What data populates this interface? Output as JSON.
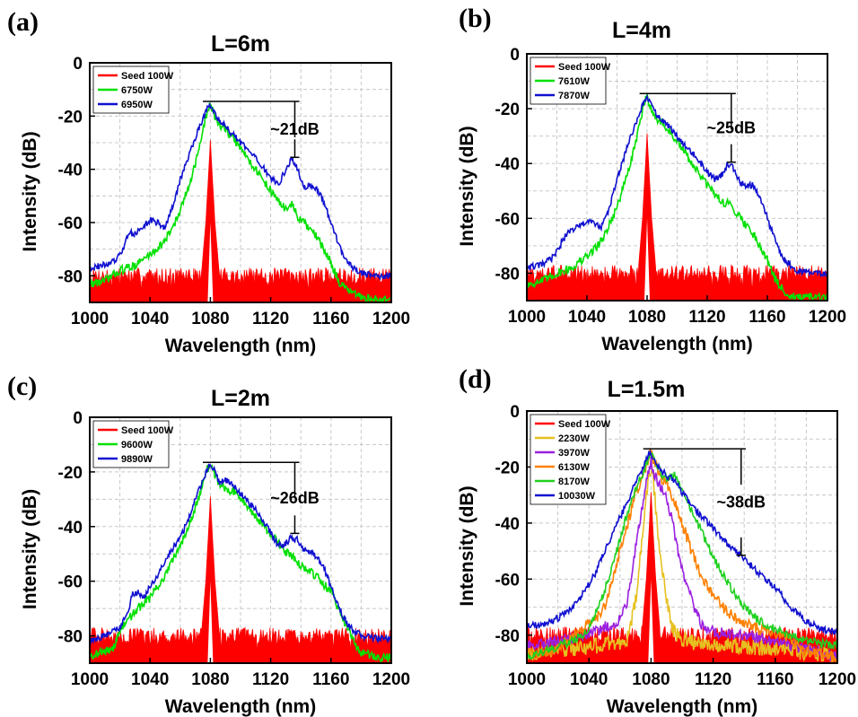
{
  "chart_data": [
    {
      "type": "line",
      "panel_label": "(a)",
      "title": "L=6m",
      "xlabel": "Wavelength (nm)",
      "ylabel": "Intensity (dB)",
      "xlim": [
        1000,
        1200
      ],
      "ylim": [
        -90,
        0
      ],
      "xticks": [
        1000,
        1040,
        1080,
        1120,
        1160,
        1200
      ],
      "yticks": [
        0,
        -20,
        -40,
        -60,
        -80
      ],
      "grid": true,
      "legend_position": "top-left",
      "annotation": {
        "text": "~21dB",
        "x": 1136,
        "y_top": -14.5,
        "y_bottom": -35.5
      },
      "series": [
        {
          "name": "Seed 100W",
          "color": "#ff0000",
          "style": "seed",
          "floor": -80,
          "noise": 3,
          "x": [
            1000,
            1074,
            1077,
            1079,
            1080,
            1081,
            1083,
            1086,
            1200
          ],
          "y": [
            -80,
            -80,
            -60,
            -40,
            -29,
            -40,
            -60,
            -80,
            -80
          ]
        },
        {
          "name": "6750W",
          "color": "#00e000",
          "noise": 1.6,
          "x": [
            1000,
            1010,
            1020,
            1030,
            1040,
            1050,
            1060,
            1070,
            1075,
            1078,
            1080,
            1083,
            1086,
            1090,
            1100,
            1110,
            1120,
            1125,
            1130,
            1134,
            1138,
            1145,
            1150,
            1155,
            1160,
            1165,
            1170,
            1175,
            1180,
            1190,
            1200
          ],
          "y": [
            -83,
            -82,
            -78,
            -76,
            -72,
            -67,
            -56,
            -38,
            -26,
            -18,
            -16,
            -20,
            -23,
            -25,
            -32,
            -40,
            -48,
            -52,
            -55,
            -53,
            -58,
            -62,
            -65,
            -70,
            -75,
            -82,
            -85,
            -87,
            -88,
            -89,
            -89
          ]
        },
        {
          "name": "6950W",
          "color": "#1010d0",
          "noise": 1.2,
          "x": [
            1000,
            1010,
            1018,
            1022,
            1026,
            1030,
            1035,
            1040,
            1045,
            1050,
            1055,
            1060,
            1065,
            1070,
            1075,
            1078,
            1080,
            1083,
            1086,
            1090,
            1100,
            1110,
            1120,
            1125,
            1130,
            1134,
            1138,
            1142,
            1146,
            1150,
            1155,
            1160,
            1165,
            1170,
            1175,
            1180,
            1190,
            1200
          ],
          "y": [
            -77,
            -76,
            -74,
            -70,
            -64,
            -64,
            -62,
            -59,
            -60,
            -62,
            -54,
            -44,
            -36,
            -28,
            -21,
            -17,
            -16,
            -19,
            -22,
            -24,
            -30,
            -36,
            -43,
            -46,
            -40,
            -36,
            -40,
            -47,
            -46,
            -47,
            -52,
            -60,
            -68,
            -74,
            -77,
            -79,
            -80,
            -80
          ]
        }
      ]
    },
    {
      "type": "line",
      "panel_label": "(b)",
      "title": "L=4m",
      "xlabel": "Wavelength (nm)",
      "ylabel": "Intensity (dB)",
      "xlim": [
        1000,
        1200
      ],
      "ylim": [
        -90,
        0
      ],
      "xticks": [
        1000,
        1040,
        1080,
        1120,
        1160,
        1200
      ],
      "yticks": [
        0,
        -20,
        -40,
        -60,
        -80
      ],
      "grid": true,
      "legend_position": "top-left",
      "annotation": {
        "text": "~25dB",
        "x": 1136,
        "y_top": -14.5,
        "y_bottom": -39.5
      },
      "series": [
        {
          "name": "Seed 100W",
          "color": "#ff0000",
          "style": "seed",
          "floor": -80,
          "noise": 3,
          "x": [
            1000,
            1074,
            1077,
            1079,
            1080,
            1081,
            1083,
            1086,
            1200
          ],
          "y": [
            -80,
            -80,
            -60,
            -40,
            -29,
            -40,
            -60,
            -80,
            -80
          ]
        },
        {
          "name": "7610W",
          "color": "#00e000",
          "noise": 1.6,
          "x": [
            1000,
            1010,
            1020,
            1030,
            1040,
            1050,
            1060,
            1070,
            1075,
            1078,
            1080,
            1083,
            1086,
            1090,
            1100,
            1110,
            1120,
            1125,
            1130,
            1135,
            1140,
            1145,
            1150,
            1155,
            1160,
            1165,
            1170,
            1175,
            1180,
            1190,
            1200
          ],
          "y": [
            -84,
            -83,
            -80,
            -78,
            -74,
            -68,
            -56,
            -38,
            -26,
            -18,
            -16,
            -20,
            -24,
            -25,
            -32,
            -40,
            -48,
            -51,
            -54,
            -55,
            -58,
            -62,
            -65,
            -70,
            -75,
            -82,
            -86,
            -88,
            -89,
            -89,
            -89
          ]
        },
        {
          "name": "7870W",
          "color": "#1010d0",
          "noise": 1.2,
          "x": [
            1000,
            1010,
            1018,
            1022,
            1026,
            1030,
            1035,
            1040,
            1045,
            1050,
            1055,
            1060,
            1065,
            1070,
            1075,
            1078,
            1080,
            1083,
            1086,
            1090,
            1100,
            1110,
            1120,
            1125,
            1130,
            1134,
            1138,
            1142,
            1146,
            1150,
            1155,
            1160,
            1165,
            1170,
            1175,
            1180,
            1190,
            1200
          ],
          "y": [
            -78,
            -77,
            -74,
            -70,
            -66,
            -64,
            -63,
            -61,
            -62,
            -63,
            -56,
            -46,
            -37,
            -29,
            -22,
            -17,
            -16,
            -19,
            -22,
            -24,
            -30,
            -36,
            -43,
            -46,
            -44,
            -40,
            -42,
            -47,
            -48,
            -48,
            -52,
            -60,
            -68,
            -74,
            -77,
            -79,
            -80,
            -80
          ]
        }
      ]
    },
    {
      "type": "line",
      "panel_label": "(c)",
      "title": "L=2m",
      "xlabel": "Wavelength (nm)",
      "ylabel": "Intensity (dB)",
      "xlim": [
        1000,
        1200
      ],
      "ylim": [
        -90,
        0
      ],
      "xticks": [
        1000,
        1040,
        1080,
        1120,
        1160,
        1200
      ],
      "yticks": [
        0,
        -20,
        -40,
        -60,
        -80
      ],
      "grid": true,
      "legend_position": "top-left",
      "annotation": {
        "text": "~26dB",
        "x": 1136,
        "y_top": -16.5,
        "y_bottom": -42.5
      },
      "series": [
        {
          "name": "Seed 100W",
          "color": "#ff0000",
          "style": "seed",
          "floor": -80,
          "noise": 3,
          "x": [
            1000,
            1074,
            1077,
            1079,
            1080,
            1081,
            1083,
            1086,
            1200
          ],
          "y": [
            -80,
            -80,
            -60,
            -40,
            -29,
            -40,
            -60,
            -80,
            -80
          ]
        },
        {
          "name": "9600W",
          "color": "#00e000",
          "noise": 1.6,
          "x": [
            1000,
            1010,
            1016,
            1020,
            1030,
            1040,
            1050,
            1060,
            1070,
            1075,
            1078,
            1080,
            1083,
            1086,
            1090,
            1095,
            1100,
            1110,
            1120,
            1130,
            1140,
            1150,
            1160,
            1165,
            1170,
            1175,
            1180,
            1190,
            1200
          ],
          "y": [
            -87,
            -86,
            -84,
            -78,
            -71,
            -66,
            -58,
            -47,
            -33,
            -24,
            -19,
            -18,
            -21,
            -24,
            -26,
            -27,
            -29,
            -36,
            -43,
            -49,
            -54,
            -58,
            -64,
            -70,
            -76,
            -82,
            -86,
            -88,
            -88
          ]
        },
        {
          "name": "9890W",
          "color": "#1010d0",
          "noise": 1.2,
          "x": [
            1000,
            1010,
            1020,
            1025,
            1028,
            1032,
            1036,
            1040,
            1045,
            1050,
            1055,
            1060,
            1065,
            1070,
            1075,
            1078,
            1080,
            1083,
            1086,
            1090,
            1095,
            1100,
            1110,
            1120,
            1125,
            1130,
            1134,
            1138,
            1142,
            1146,
            1150,
            1155,
            1160,
            1165,
            1170,
            1175,
            1180,
            1190,
            1200
          ],
          "y": [
            -82,
            -80,
            -77,
            -72,
            -65,
            -64,
            -66,
            -62,
            -58,
            -53,
            -48,
            -44,
            -38,
            -30,
            -23,
            -19,
            -17,
            -20,
            -24,
            -23,
            -25,
            -28,
            -34,
            -42,
            -47,
            -46,
            -44,
            -45,
            -49,
            -49,
            -51,
            -55,
            -62,
            -69,
            -75,
            -78,
            -80,
            -81,
            -81
          ]
        }
      ]
    },
    {
      "type": "line",
      "panel_label": "(d)",
      "title": "L=1.5m",
      "xlabel": "Wavelength (nm)",
      "ylabel": "Intensity (dB)",
      "xlim": [
        1000,
        1200
      ],
      "ylim": [
        -90,
        0
      ],
      "xticks": [
        1000,
        1040,
        1080,
        1120,
        1160,
        1200
      ],
      "yticks": [
        0,
        -20,
        -40,
        -60,
        -80
      ],
      "grid": true,
      "legend_position": "top-left",
      "annotation": {
        "text": "~38dB",
        "x": 1138,
        "y_top": -13.5,
        "y_bottom": -51.5
      },
      "series": [
        {
          "name": "Seed 100W",
          "color": "#ff0000",
          "style": "seed",
          "floor": -80,
          "noise": 3,
          "x": [
            1000,
            1074,
            1077,
            1079,
            1080,
            1081,
            1083,
            1086,
            1200
          ],
          "y": [
            -80,
            -80,
            -60,
            -40,
            -29,
            -40,
            -60,
            -80,
            -80
          ]
        },
        {
          "name": "2230W",
          "color": "#e6c020",
          "noise": 3,
          "x": [
            1000,
            1040,
            1060,
            1066,
            1070,
            1074,
            1077,
            1079,
            1080,
            1081,
            1083,
            1086,
            1090,
            1094,
            1100,
            1120,
            1140,
            1160,
            1180,
            1200
          ],
          "y": [
            -86,
            -84,
            -83,
            -80,
            -68,
            -48,
            -30,
            -22,
            -20,
            -23,
            -34,
            -52,
            -68,
            -78,
            -82,
            -83,
            -84,
            -85,
            -86,
            -88
          ]
        },
        {
          "name": "3970W",
          "color": "#9a20e0",
          "noise": 2,
          "x": [
            1000,
            1040,
            1050,
            1058,
            1064,
            1068,
            1072,
            1076,
            1079,
            1080,
            1082,
            1085,
            1088,
            1091,
            1094,
            1097,
            1100,
            1104,
            1108,
            1112,
            1120,
            1140,
            1160,
            1180,
            1200
          ],
          "y": [
            -84,
            -80,
            -77,
            -76,
            -70,
            -56,
            -42,
            -28,
            -20,
            -18,
            -22,
            -26,
            -28,
            -34,
            -40,
            -49,
            -56,
            -64,
            -70,
            -76,
            -79,
            -80,
            -82,
            -85,
            -88
          ]
        },
        {
          "name": "6130W",
          "color": "#ff8000",
          "noise": 2,
          "x": [
            1000,
            1020,
            1030,
            1040,
            1045,
            1050,
            1055,
            1060,
            1065,
            1070,
            1074,
            1077,
            1079,
            1080,
            1082,
            1085,
            1088,
            1090,
            1093,
            1096,
            1100,
            1105,
            1110,
            1120,
            1130,
            1140,
            1150,
            1160,
            1170,
            1180,
            1200
          ],
          "y": [
            -87,
            -85,
            -80,
            -76,
            -74,
            -70,
            -60,
            -50,
            -40,
            -30,
            -24,
            -19,
            -16,
            -15,
            -18,
            -22,
            -25,
            -26,
            -30,
            -34,
            -40,
            -48,
            -56,
            -66,
            -72,
            -76,
            -78,
            -79,
            -82,
            -86,
            -88
          ]
        },
        {
          "name": "8170W",
          "color": "#20d020",
          "noise": 1.5,
          "x": [
            1000,
            1010,
            1020,
            1030,
            1040,
            1050,
            1055,
            1060,
            1065,
            1070,
            1075,
            1078,
            1080,
            1083,
            1086,
            1090,
            1095,
            1100,
            1105,
            1110,
            1115,
            1120,
            1130,
            1140,
            1150,
            1160,
            1170,
            1180,
            1200
          ],
          "y": [
            -88,
            -86,
            -84,
            -82,
            -78,
            -64,
            -56,
            -46,
            -36,
            -28,
            -22,
            -17,
            -15,
            -18,
            -22,
            -24,
            -23,
            -28,
            -34,
            -40,
            -46,
            -52,
            -62,
            -70,
            -75,
            -78,
            -80,
            -82,
            -84
          ]
        },
        {
          "name": "10030W",
          "color": "#1010d0",
          "noise": 1.2,
          "x": [
            1000,
            1010,
            1020,
            1030,
            1040,
            1045,
            1050,
            1055,
            1060,
            1065,
            1070,
            1075,
            1078,
            1080,
            1083,
            1086,
            1090,
            1095,
            1100,
            1110,
            1120,
            1130,
            1140,
            1150,
            1160,
            1170,
            1180,
            1190,
            1200
          ],
          "y": [
            -77,
            -76,
            -74,
            -70,
            -62,
            -57,
            -50,
            -44,
            -38,
            -32,
            -26,
            -20,
            -16,
            -15,
            -18,
            -21,
            -23,
            -25,
            -29,
            -36,
            -42,
            -48,
            -53,
            -58,
            -63,
            -70,
            -75,
            -78,
            -79
          ]
        }
      ]
    }
  ]
}
